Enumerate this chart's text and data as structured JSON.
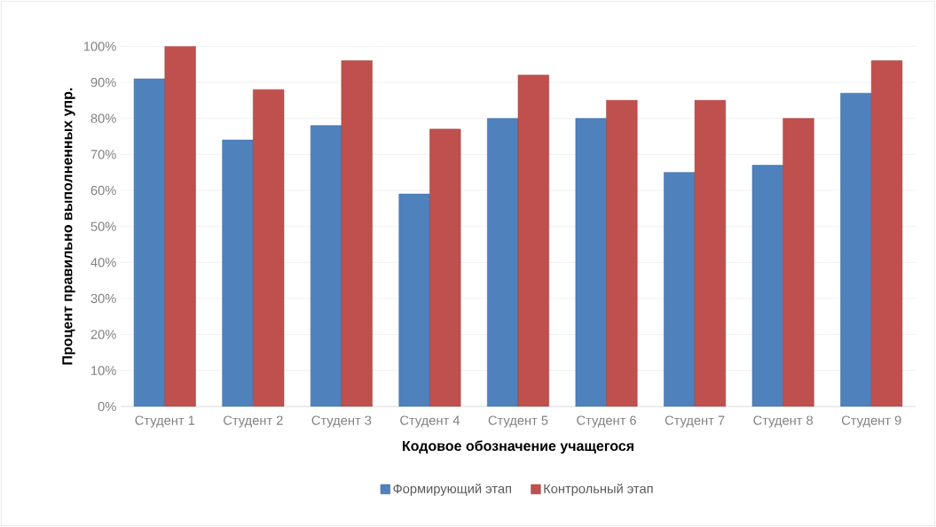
{
  "chart_data": {
    "type": "bar",
    "xlabel": "Кодовое обозначение учащегося",
    "ylabel": "Процент правильно выполненных упр.",
    "categories": [
      "Студент 1",
      "Студент 2",
      "Студент 3",
      "Студент 4",
      "Студент 5",
      "Студент 6",
      "Студент 7",
      "Студент 8",
      "Студент 9"
    ],
    "series": [
      {
        "name": "Формирующий этап",
        "color": "#4f81bd",
        "values": [
          91,
          74,
          78,
          59,
          80,
          80,
          65,
          67,
          87
        ]
      },
      {
        "name": "Контрольный этап",
        "color": "#c0504d",
        "values": [
          100,
          88,
          96,
          77,
          92,
          85,
          85,
          80,
          96
        ]
      }
    ],
    "ylim": [
      0,
      100
    ],
    "yticks": [
      {
        "value": 0,
        "label": "0%"
      },
      {
        "value": 10,
        "label": "10%"
      },
      {
        "value": 20,
        "label": "20%"
      },
      {
        "value": 30,
        "label": "30%"
      },
      {
        "value": 40,
        "label": "40%"
      },
      {
        "value": 50,
        "label": "50%"
      },
      {
        "value": 60,
        "label": "60%"
      },
      {
        "value": 70,
        "label": "70%"
      },
      {
        "value": 80,
        "label": "80%"
      },
      {
        "value": 90,
        "label": "90%"
      },
      {
        "value": 100,
        "label": "100%"
      }
    ],
    "grid": "y",
    "legend": "bottom"
  }
}
